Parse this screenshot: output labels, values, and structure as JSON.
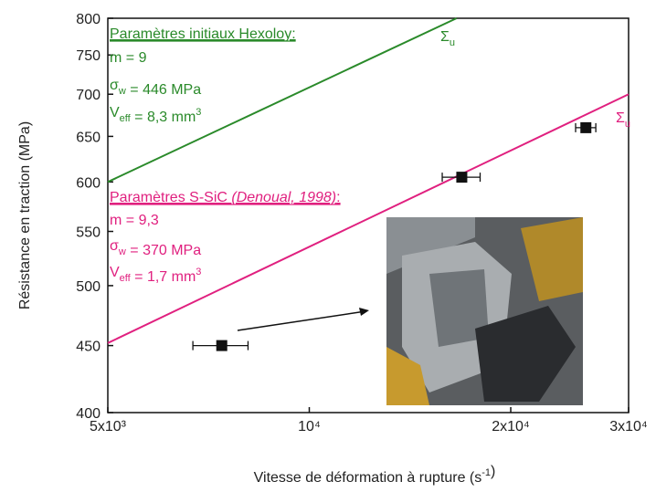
{
  "chart_data": {
    "type": "scatter",
    "x_label": [
      {
        "t": "Vitesse de déformation à rupture (s"
      },
      {
        "sup": "-1"
      },
      {
        "t": ")"
      }
    ],
    "y_label": "Résistance en traction (MPa)",
    "log_x": true,
    "log_y": true,
    "xlim": [
      5000,
      30000
    ],
    "xticks": [
      {
        "value": 5000,
        "label": "5x10³"
      },
      {
        "value": 10000,
        "label": "10⁴"
      },
      {
        "value": 20000,
        "label": "2x10⁴"
      },
      {
        "value": 30000,
        "label": "3x10⁴"
      }
    ],
    "ylim": [
      400,
      800
    ],
    "yticks": [
      400,
      450,
      500,
      550,
      600,
      650,
      700,
      750,
      800
    ],
    "series": [
      {
        "color": "#111111",
        "x": [
          7400,
          16900,
          25900
        ],
        "values": [
          450,
          605,
          660
        ],
        "xerr": [
          700,
          1100,
          900
        ]
      }
    ],
    "lines": [
      {
        "color": "#2a8a2a",
        "x": [
          5000,
          16600
        ],
        "values": [
          600,
          800
        ],
        "label": [
          {
            "t": "Σ"
          },
          {
            "sub": "u"
          }
        ]
      },
      {
        "color": "#e0207f",
        "x": [
          5000,
          30000
        ],
        "values": [
          452,
          700
        ],
        "label": [
          {
            "t": "Σ"
          },
          {
            "sub": "u"
          }
        ]
      }
    ],
    "annotations": [
      {
        "color": "#2a8a2a",
        "title": [
          {
            "t": "Paramètres initiaux Hexoloy:"
          }
        ],
        "lines": [
          [
            {
              "t": "m = 9"
            }
          ],
          [
            {
              "t": "σ"
            },
            {
              "sub": "w"
            },
            {
              "t": " = 446 MPa"
            }
          ],
          [
            {
              "t": "V"
            },
            {
              "sub": "eff"
            },
            {
              "t": " = 8,3 mm"
            },
            {
              "sup": "3"
            }
          ]
        ]
      },
      {
        "color": "#e0207f",
        "title": [
          {
            "t": "Paramètres S-SiC "
          },
          {
            "i": "(Denoual, 1998)"
          },
          {
            "t": ":"
          }
        ],
        "lines": [
          [
            {
              "t": "m = 9,3"
            }
          ],
          [
            {
              "t": "σ"
            },
            {
              "sub": "w"
            },
            {
              "t": " = 370 MPa"
            }
          ],
          [
            {
              "t": "V"
            },
            {
              "sub": "eff"
            },
            {
              "t": " = 1,7 mm"
            },
            {
              "sup": "3"
            }
          ]
        ]
      }
    ]
  }
}
